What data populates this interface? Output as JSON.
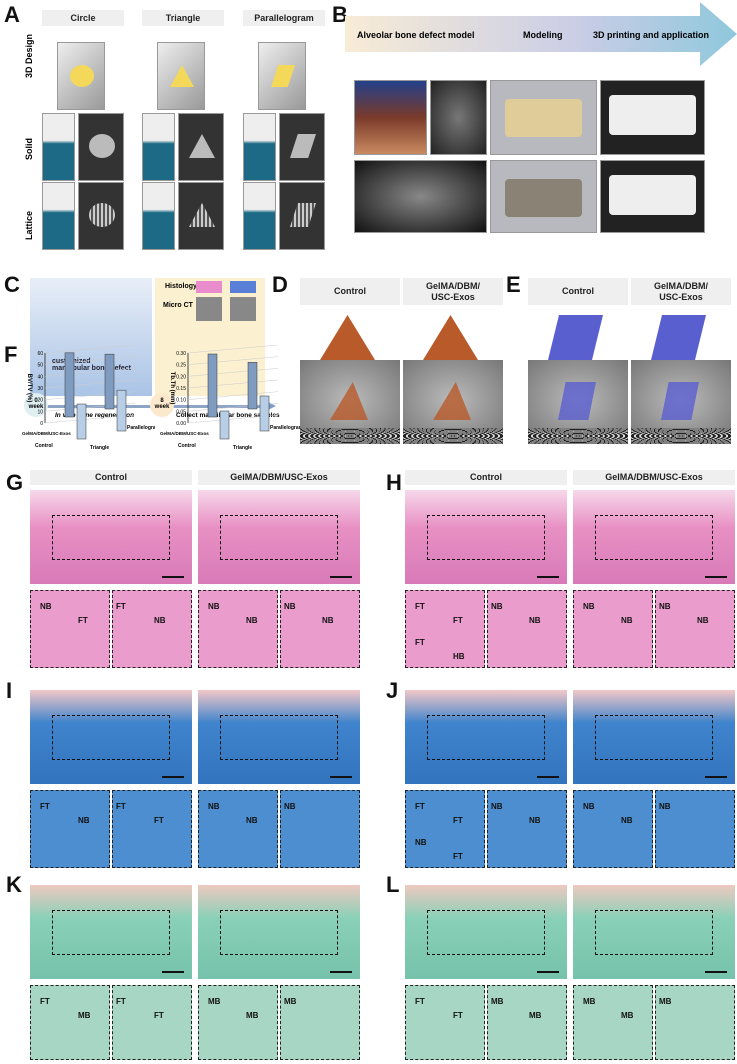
{
  "A": {
    "label": "A",
    "columns": [
      "Circle",
      "Triangle",
      "Parallelogram"
    ],
    "rows": [
      "3D Design",
      "Solid",
      "Lattice"
    ]
  },
  "B": {
    "label": "B",
    "steps": [
      "Alveolar bone defect model",
      "Modeling",
      "3D printing and application"
    ]
  },
  "C": {
    "label": "C",
    "histology": "Histology",
    "microct": "Micro CT",
    "defect": "customized\nmandibular bone defect",
    "week0": "0\nweek",
    "week8": "8\nweek",
    "invivo": "In vivo bone regeneration",
    "collect": "Collect mandibular bone samples"
  },
  "D": {
    "label": "D",
    "columns": [
      "Control",
      "GelMA/DBM/\nUSC-Exos"
    ]
  },
  "E": {
    "label": "E",
    "columns": [
      "Control",
      "GelMA/DBM/\nUSC-Exos"
    ]
  },
  "F": {
    "label": "F"
  },
  "chart_data": [
    {
      "type": "bar",
      "ylabel": "BV/TV (%)",
      "ylim": [
        0,
        60
      ],
      "yticks": [
        0,
        10,
        20,
        30,
        40,
        50,
        60
      ],
      "groups": [
        "GelMA/DBM/USC-Exos",
        "Control"
      ],
      "categories": [
        "Triangle",
        "Parallelogram"
      ],
      "series": [
        {
          "name": "GelMA/DBM/USC-Exos",
          "values": [
            55,
            47
          ]
        },
        {
          "name": "Control",
          "values": [
            30,
            35
          ]
        }
      ]
    },
    {
      "type": "bar",
      "ylabel": "Tb.Th (mm)",
      "ylim": [
        0,
        0.3
      ],
      "yticks": [
        "0.00",
        "0.05",
        "0.10",
        "0.15",
        "0.20",
        "0.25",
        "0.30"
      ],
      "groups": [
        "GelMA/DBM/USC-Exos",
        "Control"
      ],
      "categories": [
        "Triangle",
        "Parallelogram"
      ],
      "series": [
        {
          "name": "GelMA/DBM/USC-Exos",
          "values": [
            0.27,
            0.2
          ]
        },
        {
          "name": "Control",
          "values": [
            0.12,
            0.15
          ]
        }
      ]
    }
  ],
  "histo": [
    {
      "label": "G",
      "stain": "he",
      "columns": [
        "Control",
        "GelMA/DBM/USC-Exos"
      ],
      "tags": [
        [
          "NB",
          "FT",
          "FT",
          "NB"
        ],
        [
          "NB",
          "NB",
          "NB",
          "NB"
        ]
      ]
    },
    {
      "label": "H",
      "stain": "he",
      "columns": [
        "Control",
        "GelMA/DBM/USC-Exos"
      ],
      "tags": [
        [
          "FT",
          "FT",
          "NB",
          "NB",
          "FT",
          "HB"
        ],
        [
          "NB",
          "NB",
          "NB",
          "NB"
        ]
      ]
    },
    {
      "label": "I",
      "stain": "masson",
      "columns": [],
      "tags": [
        [
          "FT",
          "NB",
          "FT",
          "FT"
        ],
        [
          "NB",
          "NB",
          "NB"
        ]
      ]
    },
    {
      "label": "J",
      "stain": "masson",
      "columns": [],
      "tags": [
        [
          "FT",
          "FT",
          "NB",
          "NB",
          "NB",
          "FT"
        ],
        [
          "NB",
          "NB",
          "NB"
        ]
      ]
    },
    {
      "label": "K",
      "stain": "safranin",
      "columns": [],
      "tags": [
        [
          "FT",
          "MB",
          "FT",
          "FT"
        ],
        [
          "MB",
          "MB",
          "MB"
        ]
      ]
    },
    {
      "label": "L",
      "stain": "safranin",
      "columns": [],
      "tags": [
        [
          "FT",
          "FT",
          "MB",
          "MB"
        ],
        [
          "MB",
          "MB",
          "MB"
        ]
      ]
    }
  ],
  "colors": {
    "he": "#eaa0cc",
    "masson": "#3f84cc",
    "safranin": "#86cdb5",
    "arrow": "#8fc8dc"
  }
}
